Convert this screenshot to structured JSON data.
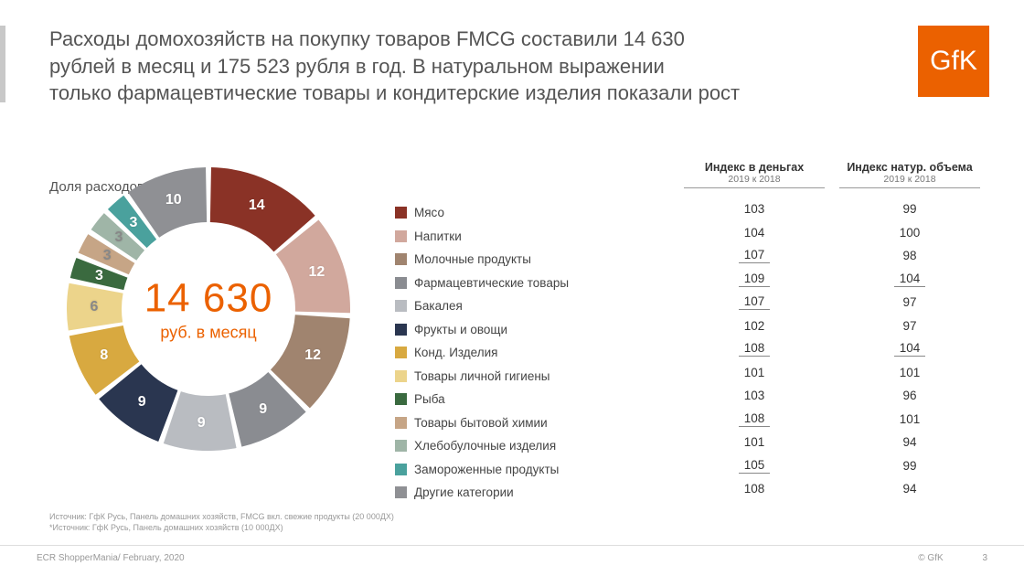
{
  "title_lines": [
    "Расходы домохозяйств на покупку товаров FMCG составили 14 630",
    "рублей в месяц и 175 523 рубля в год. В натуральном выражении",
    "только фармацевтические товары и кондитерские изделия показали рост"
  ],
  "logo_text": "GfK",
  "chart": {
    "title": "Доля расходов, %",
    "center_big": "14 630",
    "center_sub": "руб. в месяц",
    "type": "donut",
    "inner_radius": 95,
    "outer_radius": 155,
    "gap_deg": 2.2,
    "start_angle": -90,
    "slices": [
      {
        "label": "Мясо",
        "value": 14,
        "color": "#8a3226",
        "show": true,
        "lcolor": "#ffffff"
      },
      {
        "label": "Напитки",
        "value": 12,
        "color": "#d1a89d",
        "show": true,
        "lcolor": "#ffffff"
      },
      {
        "label": "Молочные продукты",
        "value": 12,
        "color": "#a0846f",
        "show": true,
        "lcolor": "#ffffff"
      },
      {
        "label": "Фармацевтические товары",
        "value": 9,
        "color": "#8a8c91",
        "show": true,
        "lcolor": "#ffffff"
      },
      {
        "label": "Бакалея",
        "value": 9,
        "color": "#b9bcc1",
        "show": true,
        "lcolor": "#ffffff"
      },
      {
        "label": "Фрукты и овощи",
        "value": 9,
        "color": "#2a3650",
        "show": true,
        "lcolor": "#ffffff"
      },
      {
        "label": "Конд. Изделия",
        "value": 8,
        "color": "#d8a940",
        "show": true,
        "lcolor": "#ffffff"
      },
      {
        "label": "Товары личной гигиены",
        "value": 6,
        "color": "#ecd48b",
        "show": true,
        "lcolor": "#888"
      },
      {
        "label": "Рыба",
        "value": 3,
        "color": "#3a6a3f",
        "show": true,
        "lcolor": "#ffffff"
      },
      {
        "label": "Товары бытовой химии",
        "value": 3,
        "color": "#c6a586",
        "show": true,
        "lcolor": "#888"
      },
      {
        "label": "Хлебобулочные изделия",
        "value": 3,
        "color": "#9fb5a7",
        "show": true,
        "lcolor": "#888"
      },
      {
        "label": "Замороженные продукты",
        "value": 3,
        "color": "#4aa19d",
        "show": true,
        "lcolor": "#ffffff"
      },
      {
        "label": "Другие категории",
        "value": 10,
        "color": "#8f9094",
        "show": true,
        "lcolor": "#ffffff"
      }
    ]
  },
  "table": {
    "headers": [
      {
        "title": "Индекс в деньгах",
        "sub": "2019 к 2018"
      },
      {
        "title": "Индекс натур. объема",
        "sub": "2019 к 2018"
      }
    ],
    "rows": [
      {
        "c1": "103",
        "u1": false,
        "c2": "99",
        "u2": false
      },
      {
        "c1": "104",
        "u1": false,
        "c2": "100",
        "u2": false
      },
      {
        "c1": "107",
        "u1": true,
        "c2": "98",
        "u2": false
      },
      {
        "c1": "109",
        "u1": true,
        "c2": "104",
        "u2": true
      },
      {
        "c1": "107",
        "u1": true,
        "c2": "97",
        "u2": false
      },
      {
        "c1": "102",
        "u1": false,
        "c2": "97",
        "u2": false
      },
      {
        "c1": "108",
        "u1": true,
        "c2": "104",
        "u2": true
      },
      {
        "c1": "101",
        "u1": false,
        "c2": "101",
        "u2": false
      },
      {
        "c1": "103",
        "u1": false,
        "c2": "96",
        "u2": false
      },
      {
        "c1": "108",
        "u1": true,
        "c2": "101",
        "u2": false
      },
      {
        "c1": "101",
        "u1": false,
        "c2": "94",
        "u2": false
      },
      {
        "c1": "105",
        "u1": true,
        "c2": "99",
        "u2": false
      },
      {
        "c1": "108",
        "u1": false,
        "c2": "94",
        "u2": false
      }
    ]
  },
  "sources": [
    "Источник: ГфК Русь, Панель домашних хозяйств, FMCG вкл. свежие продукты (20 000ДХ)",
    "*Источник: ГфК Русь, Панель домашних хозяйств (10 000ДХ)"
  ],
  "footer_left": "ECR ShopperMania/ February, 2020",
  "footer_right": "© GfK",
  "page_num": "3"
}
